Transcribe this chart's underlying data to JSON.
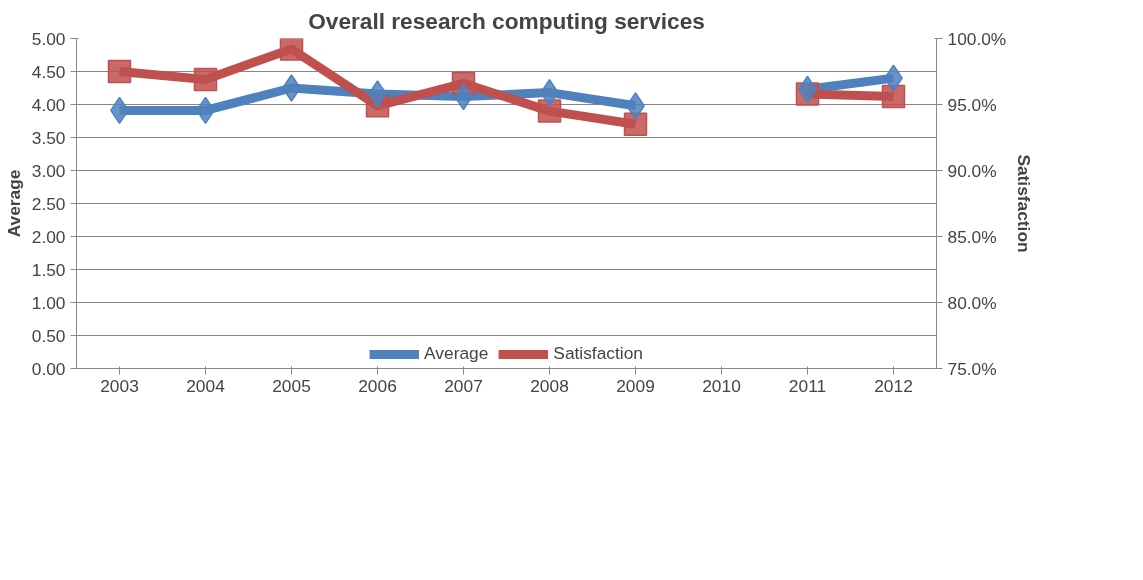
{
  "chart_data": {
    "type": "line",
    "title": "Overall research computing services",
    "ylabel": "Average",
    "y2label": "Satisfaction",
    "categories": [
      "2003",
      "2004",
      "2005",
      "2006",
      "2007",
      "2008",
      "2009",
      "2010",
      "2011",
      "2012"
    ],
    "series": [
      {
        "name": "Average",
        "color": "#4f81bd",
        "marker": "diamond",
        "values": [
          3.91,
          3.91,
          4.25,
          4.16,
          4.12,
          4.18,
          3.98,
          null,
          4.23,
          4.4
        ]
      },
      {
        "name": "Satisfaction",
        "color": "#c0504d",
        "marker": "square",
        "axis": "y2",
        "values": [
          97.5,
          96.9,
          99.2,
          94.9,
          96.6,
          94.5,
          93.5,
          null,
          95.8,
          95.6
        ]
      }
    ],
    "ylim": [
      0,
      5
    ],
    "yticks": [
      {
        "value": 0,
        "label": "0.00"
      },
      {
        "value": 0.5,
        "label": "0.50"
      },
      {
        "value": 1,
        "label": "1.00"
      },
      {
        "value": 1.5,
        "label": "1.50"
      },
      {
        "value": 2,
        "label": "2.00"
      },
      {
        "value": 2.5,
        "label": "2.50"
      },
      {
        "value": 3,
        "label": "3.00"
      },
      {
        "value": 3.5,
        "label": "3.50"
      },
      {
        "value": 4,
        "label": "4.00"
      },
      {
        "value": 4.5,
        "label": "4.50"
      },
      {
        "value": 5,
        "label": "5.00"
      }
    ],
    "y2lim": [
      75,
      100
    ],
    "y2ticks": [
      {
        "value": 75,
        "label": "75.0%"
      },
      {
        "value": 80,
        "label": "80.0%"
      },
      {
        "value": 85,
        "label": "85.0%"
      },
      {
        "value": 90,
        "label": "90.0%"
      },
      {
        "value": 95,
        "label": "95.0%"
      },
      {
        "value": 100,
        "label": "100.0%"
      }
    ],
    "grid": "y",
    "legend": "bottom"
  }
}
